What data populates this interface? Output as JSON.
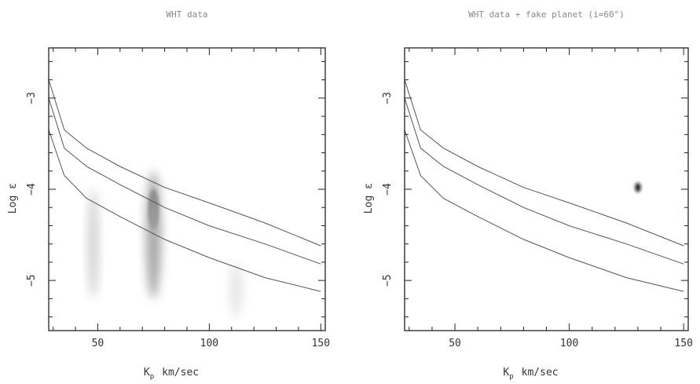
{
  "chart_data": [
    {
      "type": "heatmap",
      "title": "WHT data",
      "xlabel": "K",
      "xlabel_sub": "p",
      "xlabel_unit": "km/sec",
      "ylabel": "Log ε",
      "xlim": [
        28,
        152
      ],
      "ylim": [
        -5.55,
        -2.45
      ],
      "xticks": [
        50,
        100,
        150
      ],
      "xtick_labels": [
        "50",
        "100",
        "150"
      ],
      "yticks": [
        -3,
        -4,
        -5
      ],
      "ytick_labels": [
        "−3",
        "−4",
        "−5"
      ],
      "grid": false,
      "contours": [
        {
          "x": [
            28,
            35,
            45,
            60,
            80,
            100,
            125,
            150
          ],
          "y": [
            -2.8,
            -3.35,
            -3.55,
            -3.75,
            -3.98,
            -4.15,
            -4.37,
            -4.62
          ]
        },
        {
          "x": [
            28,
            35,
            45,
            60,
            80,
            100,
            125,
            150
          ],
          "y": [
            -3.0,
            -3.55,
            -3.75,
            -3.95,
            -4.2,
            -4.4,
            -4.6,
            -4.82
          ]
        },
        {
          "x": [
            28,
            35,
            45,
            60,
            80,
            100,
            125,
            150
          ],
          "y": [
            -3.35,
            -3.85,
            -4.1,
            -4.3,
            -4.55,
            -4.75,
            -4.97,
            -5.12
          ]
        }
      ],
      "features": [
        {
          "x": 75,
          "y": -4.22,
          "dx": 2.0,
          "dy": 0.22,
          "intensity": 1.0
        },
        {
          "x": 75,
          "y": -4.5,
          "dx": 3.5,
          "dy": 0.7,
          "intensity": 0.35
        },
        {
          "x": 48,
          "y": -4.6,
          "dx": 2.5,
          "dy": 0.6,
          "intensity": 0.18
        },
        {
          "x": 112,
          "y": -5.1,
          "dx": 3.0,
          "dy": 0.3,
          "intensity": 0.1
        }
      ]
    },
    {
      "type": "heatmap",
      "title": "WHT data + fake planet (i=60°)",
      "xlabel": "K",
      "xlabel_sub": "p",
      "xlabel_unit": "km/sec",
      "ylabel": "Log ε",
      "xlim": [
        28,
        152
      ],
      "ylim": [
        -5.55,
        -2.45
      ],
      "xticks": [
        50,
        100,
        150
      ],
      "xtick_labels": [
        "50",
        "100",
        "150"
      ],
      "yticks": [
        -3,
        -4,
        -5
      ],
      "ytick_labels": [
        "−3",
        "−4",
        "−5"
      ],
      "grid": false,
      "contours": [
        {
          "x": [
            28,
            35,
            45,
            60,
            80,
            100,
            125,
            150
          ],
          "y": [
            -2.8,
            -3.35,
            -3.55,
            -3.75,
            -3.98,
            -4.15,
            -4.37,
            -4.62
          ]
        },
        {
          "x": [
            28,
            35,
            45,
            60,
            80,
            100,
            125,
            150
          ],
          "y": [
            -3.0,
            -3.55,
            -3.75,
            -3.95,
            -4.2,
            -4.4,
            -4.6,
            -4.82
          ]
        },
        {
          "x": [
            28,
            35,
            45,
            60,
            80,
            100,
            125,
            150
          ],
          "y": [
            -3.35,
            -3.85,
            -4.1,
            -4.3,
            -4.55,
            -4.75,
            -4.97,
            -5.12
          ]
        }
      ],
      "features": [
        {
          "x": 130,
          "y": -3.98,
          "dx": 1.2,
          "dy": 0.05,
          "intensity": 1.0
        }
      ]
    }
  ]
}
